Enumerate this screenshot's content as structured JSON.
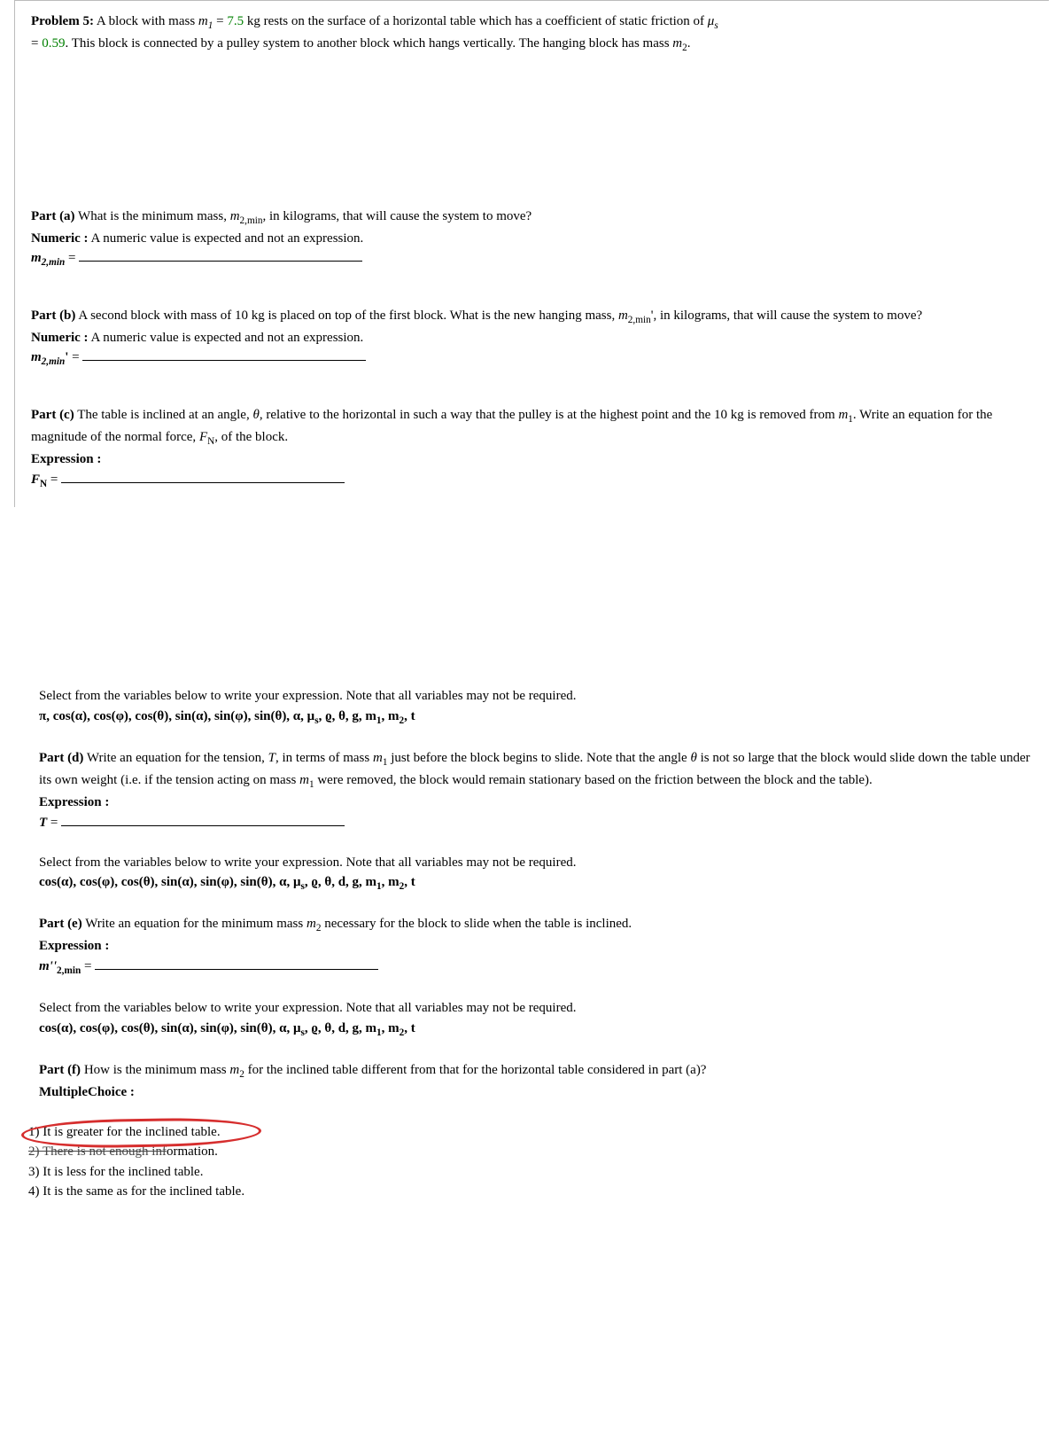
{
  "problem": {
    "label": "Problem 5:",
    "text_a": "A block with mass ",
    "m1_sym": "m",
    "m1_sub": "1",
    "eq": " = ",
    "m1_val": "7.5",
    "text_b": " kg rests on the surface of a horizontal table which has a coefficient of static friction of ",
    "mu_sym": "μ",
    "mu_sub": "s",
    "text_c": " = ",
    "mu_val": "0.59",
    "text_d": ". This block is connected by a pulley system to another block which hangs vertically. The hanging block has mass ",
    "m2_sym": "m",
    "m2_sub": "2",
    "text_e": "."
  },
  "partA": {
    "label": "Part (a)",
    "q1": " What is the minimum mass, ",
    "var": "m",
    "sub": "2,min",
    "q2": ", in kilograms, that will cause the system to move?",
    "numeric_label": "Numeric   :",
    "numeric_text": " A numeric value is expected and not an expression.",
    "ans_lhs": "m",
    "ans_sub": "2,min",
    "ans_eq": " = "
  },
  "partB": {
    "label": "Part (b)",
    "q1": " A second block with mass of 10 kg is placed on top of the first block. What is the new hanging mass, ",
    "var": "m",
    "sub": "2,min",
    "prime": "'",
    "q2": ", in kilograms, that will cause the system to move?",
    "numeric_label": "Numeric   :",
    "numeric_text": " A numeric value is expected and not an expression.",
    "ans_lhs": "m",
    "ans_sub": "2,min",
    "ans_eq": " = "
  },
  "partC": {
    "label": "Part (c)",
    "q1": " The table is inclined at an angle, ",
    "theta": "θ",
    "q2": ", relative to the horizontal in such a way that the pulley is at the highest point and the 10 kg is removed from ",
    "m1": "m",
    "m1sub": "1",
    "q3": ". Write an equation for the magnitude of the normal force, ",
    "FN": "F",
    "FNsub": "N",
    "q4": ", of the block.",
    "expr_label": "Expression   :",
    "ans_lhs": "F",
    "ans_sub": "N",
    "ans_eq": " = "
  },
  "varsNote": "Select from the variables below to write your expression. Note that all variables may not be required.",
  "varsC": "π, cos(α), cos(φ), cos(θ), sin(α), sin(φ), sin(θ), α, μ",
  "varsC_sub": "s",
  "varsC_tail": ", ϱ, θ, g, m",
  "varsC_m1": "1",
  "varsC_comma": ", m",
  "varsC_m2": "2",
  "varsC_end": ", t",
  "partD": {
    "label": "Part (d)",
    "q1": " Write an equation for the tension, ",
    "T": "T",
    "q2": ", in terms of mass ",
    "m1": "m",
    "m1sub": "1",
    "q3": " just before the block begins to slide. Note that the angle ",
    "theta": "θ",
    "q4": " is not so large that the block would slide down the table under its own weight (i.e. if the tension acting on mass ",
    "q5": " were removed, the block would remain stationary based on the friction between the block and the table).",
    "expr_label": "Expression   :",
    "ans_lhs": "T",
    "ans_eq": " = "
  },
  "varsD": "cos(α), cos(φ), cos(θ), sin(α), sin(φ), sin(θ), α, μ",
  "varsD_sub": "s",
  "varsD_tail": ", ϱ, θ, d, g, m",
  "partE": {
    "label": "Part (e)",
    "q1": " Write an equation for the minimum mass ",
    "m2": "m",
    "m2sub": "2",
    "q2": " necessary for the block to slide when the table is inclined.",
    "expr_label": "Expression   :",
    "ans_lhs": "m''",
    "ans_sub": "2,min",
    "ans_eq": " = "
  },
  "partF": {
    "label": "Part (f)",
    "q1": " How is the minimum mass ",
    "m2": "m",
    "m2sub": "2",
    "q2": " for the inclined table different from that for the horizontal table considered in part (a)?",
    "mc_label": "MultipleChoice   :",
    "opt1": "1) It is greater for the inclined table.",
    "opt2a": "2) There is not enough inf",
    "opt2b": "ormation.",
    "opt3": "3) It is less for the inclined table.",
    "opt4": "4) It is the same as for the inclined table."
  }
}
